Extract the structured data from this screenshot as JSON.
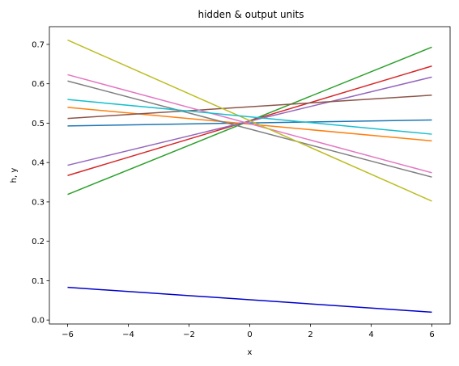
{
  "chart_data": {
    "type": "line",
    "title": "hidden & output units",
    "xlabel": "x",
    "ylabel": "h, y",
    "xlim": [
      -6.6,
      6.6
    ],
    "ylim": [
      -0.01,
      0.745
    ],
    "xticks": [
      -6,
      -4,
      -2,
      0,
      2,
      4,
      6
    ],
    "xtick_labels": [
      "−6",
      "−4",
      "−2",
      "0",
      "2",
      "4",
      "6"
    ],
    "yticks": [
      0.0,
      0.1,
      0.2,
      0.3,
      0.4,
      0.5,
      0.6,
      0.7
    ],
    "ytick_labels": [
      "0.0",
      "0.1",
      "0.2",
      "0.3",
      "0.4",
      "0.5",
      "0.6",
      "0.7"
    ],
    "grid": false,
    "legend": "none",
    "series": [
      {
        "color": "#1f77b4",
        "x": [
          -6,
          6
        ],
        "y": [
          0.493,
          0.508
        ]
      },
      {
        "color": "#ff7f0e",
        "x": [
          -6,
          6
        ],
        "y": [
          0.54,
          0.455
        ]
      },
      {
        "color": "#2ca02c",
        "x": [
          -6,
          6
        ],
        "y": [
          0.319,
          0.693
        ]
      },
      {
        "color": "#d62728",
        "x": [
          -6,
          6
        ],
        "y": [
          0.367,
          0.645
        ]
      },
      {
        "color": "#9467bd",
        "x": [
          -6,
          6
        ],
        "y": [
          0.393,
          0.617
        ]
      },
      {
        "color": "#8c564b",
        "x": [
          -6,
          6
        ],
        "y": [
          0.512,
          0.571
        ]
      },
      {
        "color": "#e377c2",
        "x": [
          -6,
          6
        ],
        "y": [
          0.623,
          0.374
        ]
      },
      {
        "color": "#7f7f7f",
        "x": [
          -6,
          6
        ],
        "y": [
          0.607,
          0.363
        ]
      },
      {
        "color": "#bcbd22",
        "x": [
          -6,
          6
        ],
        "y": [
          0.711,
          0.302
        ]
      },
      {
        "color": "#17becf",
        "x": [
          -6,
          6
        ],
        "y": [
          0.56,
          0.472
        ]
      },
      {
        "color": "#0000cd",
        "x": [
          -6,
          6
        ],
        "y": [
          0.083,
          0.02
        ]
      }
    ]
  }
}
